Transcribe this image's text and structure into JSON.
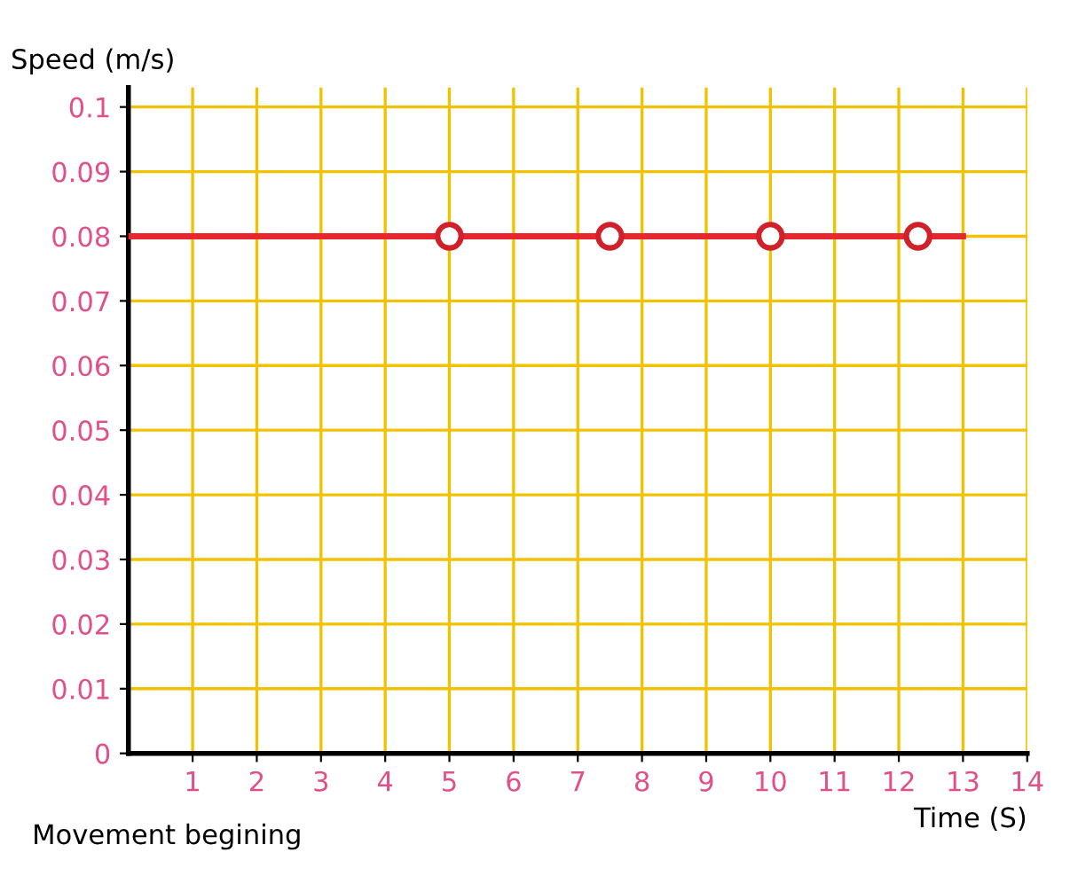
{
  "chart_data": {
    "type": "line",
    "ylabel": "Speed (m/s)",
    "xlabel": "Time (S)",
    "annotations": [
      "Movement begining"
    ],
    "series": [
      {
        "color": "#e8262e",
        "x": [
          0,
          13
        ],
        "values": [
          0.08,
          0.08
        ],
        "marker": "none"
      },
      {
        "type": "scatter",
        "color": "#d0202a",
        "x": [
          5,
          7.5,
          10,
          12.3
        ],
        "values": [
          0.08,
          0.08,
          0.08,
          0.08
        ],
        "marker": "circle"
      }
    ],
    "xlim": [
      0,
      14
    ],
    "xticks": [
      1,
      2,
      3,
      4,
      5,
      6,
      7,
      8,
      9,
      10,
      11,
      12,
      13,
      14
    ],
    "ylim": [
      0,
      0.103
    ],
    "yticks": [
      0,
      0.01,
      0.02,
      0.03,
      0.04,
      0.05,
      0.06,
      0.07,
      0.08,
      0.09,
      0.1
    ],
    "grid": true
  }
}
